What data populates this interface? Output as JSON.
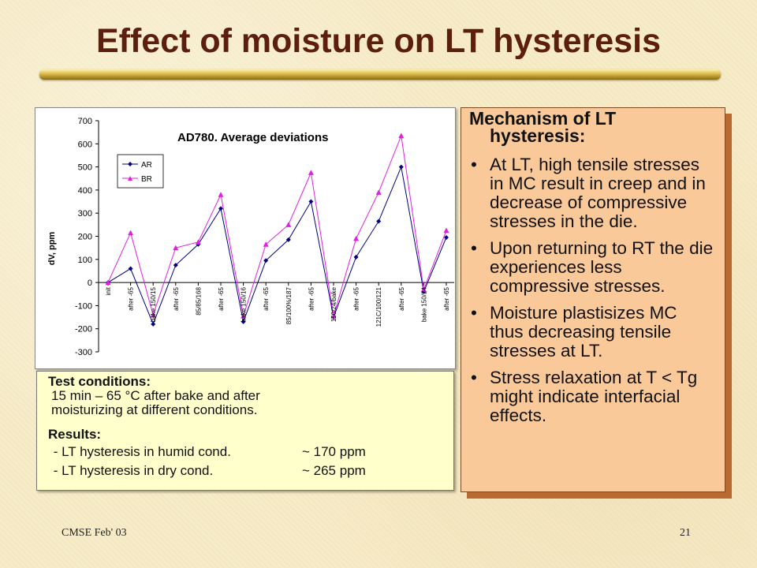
{
  "title": "Effect of moisture on LT hysteresis",
  "chart_data": {
    "type": "line",
    "title": "AD780.  Average deviations",
    "xlabel": "",
    "ylabel": "dV, ppm",
    "ylim": [
      -300,
      700
    ],
    "yticks": [
      700,
      600,
      500,
      400,
      300,
      200,
      100,
      0,
      -100,
      -200,
      -300
    ],
    "grid": false,
    "legend_position": "top-left",
    "categories": [
      "init",
      "after -65",
      "bake 150/15",
      "after -65",
      "85/85/168",
      "after -65",
      "bake 150/16",
      "after -65",
      "85/100%/187",
      "after -65",
      "150/24/bake",
      "after -65",
      "121C/100/121",
      "after -65",
      "bake 150/24",
      "after -65"
    ],
    "series": [
      {
        "name": "AR",
        "color": "#000080",
        "marker": "diamond",
        "values": [
          0,
          60,
          -180,
          75,
          165,
          320,
          -170,
          95,
          185,
          350,
          -150,
          110,
          265,
          500,
          -40,
          195
        ]
      },
      {
        "name": "BR",
        "color": "#e020e0",
        "marker": "triangle",
        "values": [
          0,
          215,
          -140,
          150,
          175,
          380,
          -145,
          165,
          250,
          475,
          -145,
          190,
          390,
          635,
          -30,
          225
        ]
      }
    ]
  },
  "conditions": {
    "heading": "Test conditions:",
    "line1": "15 min – 65 °C after bake and after",
    "line2": "moisturizing at different conditions.",
    "results_heading": "Results:",
    "results": [
      {
        "label": " - LT hysteresis in humid cond.",
        "value": "~ 170 ppm"
      },
      {
        "label": " - LT hysteresis in dry cond.",
        "value": "~ 265 ppm"
      }
    ]
  },
  "mechanism": {
    "heading_line1": "Mechanism of LT",
    "heading_line2": "hysteresis:",
    "bullets": [
      "At LT, high tensile stresses in MC result in creep and in decrease of compressive stresses in the die.",
      "Upon returning to RT the die experiences less compressive stresses.",
      "Moisture plastisizes MC thus decreasing tensile stresses at LT.",
      "Stress relaxation at T < Tg might indicate interfacial effects."
    ]
  },
  "footer": {
    "left": "CMSE Feb' 03",
    "right": "21"
  }
}
